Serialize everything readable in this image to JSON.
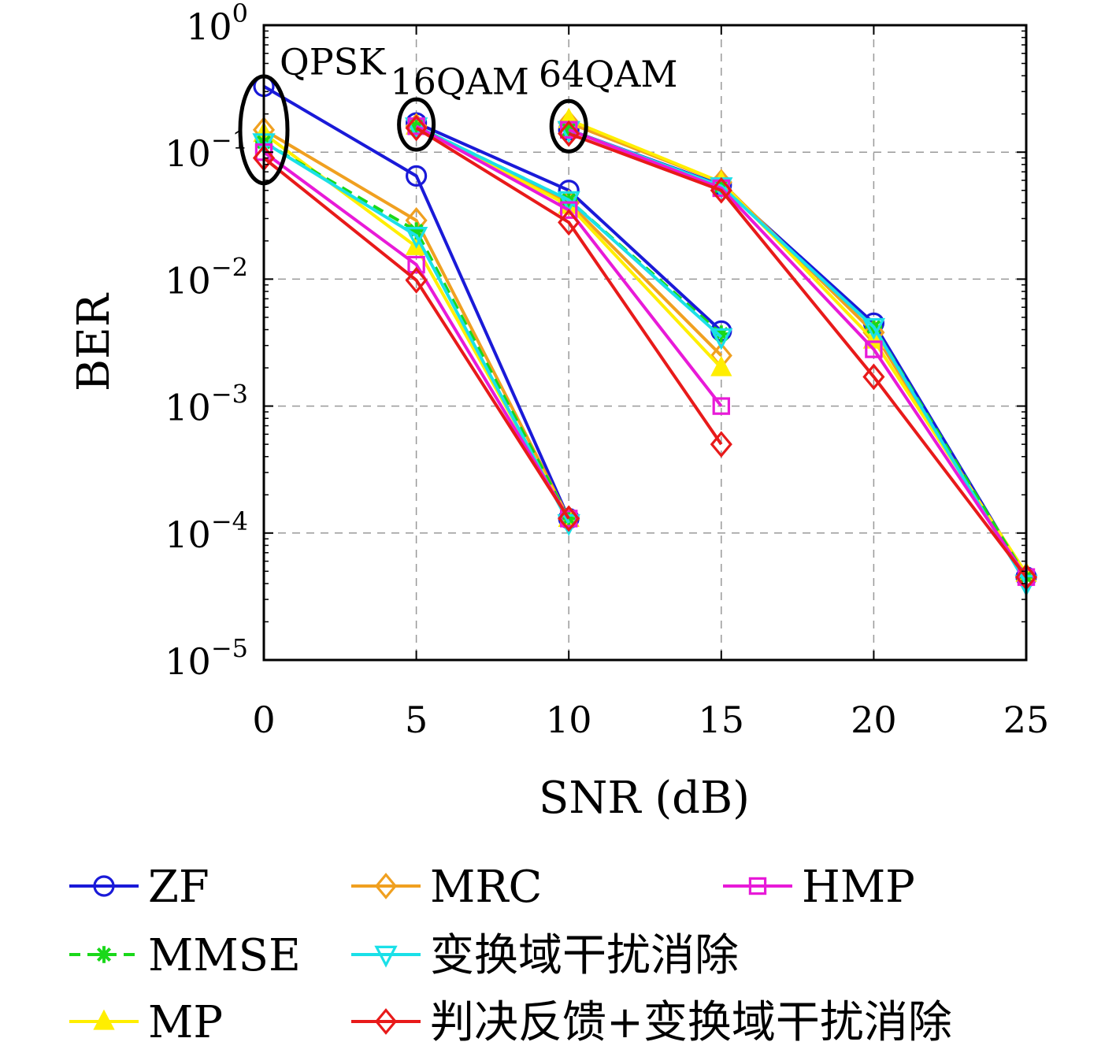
{
  "chart_data": {
    "type": "line",
    "xlabel": "SNR (dB)",
    "ylabel": "BER",
    "x_ticks": [
      "0",
      "5",
      "10",
      "15",
      "20",
      "25"
    ],
    "xlim": [
      0,
      25
    ],
    "ylim_exponents": [
      -5,
      0
    ],
    "y_scale": "log",
    "y_tick_base": "10",
    "y_tick_exponents": [
      "0",
      "−1",
      "−2",
      "−3",
      "−4",
      "−5"
    ],
    "grid": "dashed",
    "legend_position": "bottom",
    "group_labels": [
      {
        "text": "QPSK",
        "x": 0,
        "y": 0.5
      },
      {
        "text": "16QAM",
        "x": 5,
        "y": 0.35
      },
      {
        "text": "64QAM",
        "x": 10,
        "y": 0.4
      }
    ],
    "ellipses": [
      {
        "x": 0,
        "y": 0.15
      },
      {
        "x": 5,
        "y": 0.165
      },
      {
        "x": 10,
        "y": 0.16
      }
    ],
    "series": [
      {
        "name": "ZF",
        "color": "#1a1ad8",
        "marker": "circle",
        "dash": "solid",
        "segments": [
          {
            "x": [
              0,
              5,
              10
            ],
            "y": [
              0.33,
              0.065,
              0.00013
            ]
          },
          {
            "x": [
              5,
              10,
              15
            ],
            "y": [
              0.17,
              0.05,
              0.0039
            ]
          },
          {
            "x": [
              10,
              15,
              20,
              25
            ],
            "y": [
              0.15,
              0.055,
              0.0045,
              4.5e-05
            ]
          }
        ]
      },
      {
        "name": "MRC",
        "color": "#f0a020",
        "marker": "diamond",
        "dash": "solid",
        "segments": [
          {
            "x": [
              0,
              5,
              10
            ],
            "y": [
              0.15,
              0.029,
              0.00013
            ]
          },
          {
            "x": [
              5,
              10,
              15
            ],
            "y": [
              0.16,
              0.04,
              0.0025
            ]
          },
          {
            "x": [
              10,
              15,
              20,
              25
            ],
            "y": [
              0.17,
              0.058,
              0.0038,
              4.5e-05
            ]
          }
        ]
      },
      {
        "name": "HMP",
        "color": "#e81ad8",
        "marker": "square",
        "dash": "solid",
        "segments": [
          {
            "x": [
              0,
              5,
              10
            ],
            "y": [
              0.1,
              0.013,
              0.00013
            ]
          },
          {
            "x": [
              5,
              10,
              15
            ],
            "y": [
              0.16,
              0.035,
              0.001
            ]
          },
          {
            "x": [
              10,
              15,
              20,
              25
            ],
            "y": [
              0.15,
              0.052,
              0.0028,
              4.5e-05
            ]
          }
        ]
      },
      {
        "name": "MMSE",
        "color": "#1ad81a",
        "marker": "asterisk",
        "dash": "dashed",
        "segments": [
          {
            "x": [
              0,
              5,
              10
            ],
            "y": [
              0.12,
              0.024,
              0.00013
            ]
          },
          {
            "x": [
              5,
              10,
              15
            ],
            "y": [
              0.16,
              0.042,
              0.0037
            ]
          },
          {
            "x": [
              10,
              15,
              20,
              25
            ],
            "y": [
              0.15,
              0.054,
              0.0042,
              4.5e-05
            ]
          }
        ]
      },
      {
        "name": "变换域干扰消除",
        "color": "#1ae0e8",
        "marker": "triangle-down",
        "dash": "solid",
        "segments": [
          {
            "x": [
              0,
              5,
              10
            ],
            "y": [
              0.12,
              0.022,
              0.00012
            ]
          },
          {
            "x": [
              5,
              10,
              15
            ],
            "y": [
              0.16,
              0.042,
              0.0035
            ]
          },
          {
            "x": [
              10,
              15,
              20,
              25
            ],
            "y": [
              0.15,
              0.054,
              0.0042,
              4e-05
            ]
          }
        ]
      },
      {
        "name": "MP",
        "color": "#ffee00",
        "marker": "triangle-up",
        "dash": "solid",
        "segments": [
          {
            "x": [
              0,
              5,
              10
            ],
            "y": [
              0.14,
              0.018,
              0.00013
            ]
          },
          {
            "x": [
              5,
              10,
              15
            ],
            "y": [
              0.16,
              0.038,
              0.002
            ]
          },
          {
            "x": [
              10,
              15,
              20,
              25
            ],
            "y": [
              0.18,
              0.058,
              0.0033,
              4.8e-05
            ]
          }
        ]
      },
      {
        "name": "判决反馈+变换域干扰消除",
        "color": "#e81a1a",
        "marker": "diamond",
        "dash": "solid",
        "segments": [
          {
            "x": [
              0,
              5,
              10
            ],
            "y": [
              0.09,
              0.0098,
              0.00013
            ]
          },
          {
            "x": [
              5,
              10,
              15
            ],
            "y": [
              0.155,
              0.028,
              0.0005
            ]
          },
          {
            "x": [
              10,
              15,
              20,
              25
            ],
            "y": [
              0.14,
              0.05,
              0.0017,
              4.5e-05
            ]
          }
        ]
      }
    ],
    "legend_order": [
      "ZF",
      "MRC",
      "HMP",
      "MMSE",
      "变换域干扰消除",
      "MP",
      "判决反馈+变换域干扰消除"
    ]
  }
}
